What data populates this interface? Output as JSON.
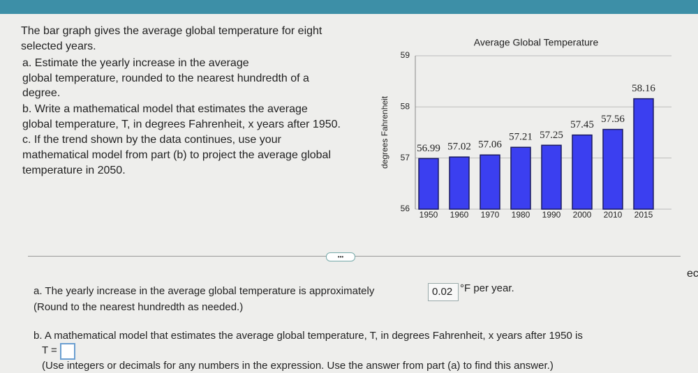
{
  "problem": {
    "lines": [
      "The bar graph gives the average global temperature for eight",
      "selected years.",
      "a. Estimate the yearly increase in the average",
      "global temperature, rounded to the nearest hundredth of a",
      "degree.",
      "b. Write a mathematical model that estimates the average",
      "global temperature, T, in degrees Fahrenheit, x years after 1950.",
      "c. If the trend shown by the data continues, use your",
      "mathematical model from part (b) to project the average global",
      "temperature in 2050."
    ]
  },
  "chart": {
    "type": "bar",
    "title": "Average Global Temperature",
    "ylabel": "degrees Fahrenheit",
    "categories": [
      "1950",
      "1960",
      "1970",
      "1980",
      "1990",
      "2000",
      "2010",
      "2015"
    ],
    "values": [
      56.99,
      57.02,
      57.06,
      57.21,
      57.25,
      57.45,
      57.56,
      58.16
    ],
    "color": "#3b3ff0",
    "ylim": [
      56,
      59
    ],
    "yticks": [
      56,
      57,
      58,
      59
    ],
    "grid": true
  },
  "toolbar": {
    "more_button": "•••"
  },
  "side_text": "ec",
  "answers": {
    "a": {
      "text": "a. The yearly increase in the average global temperature is approximately",
      "answer": 0.02,
      "unit": "°F per year.",
      "note": "(Round to the nearest hundredth as needed.)"
    },
    "b": {
      "text": "b. A mathematical model that estimates the average global temperature, T, in degrees Fahrenheit, x years after 1950 is",
      "lhs": "T =",
      "note": "(Use integers or decimals for any numbers in the expression. Use the answer from part (a) to find this answer.)"
    }
  }
}
